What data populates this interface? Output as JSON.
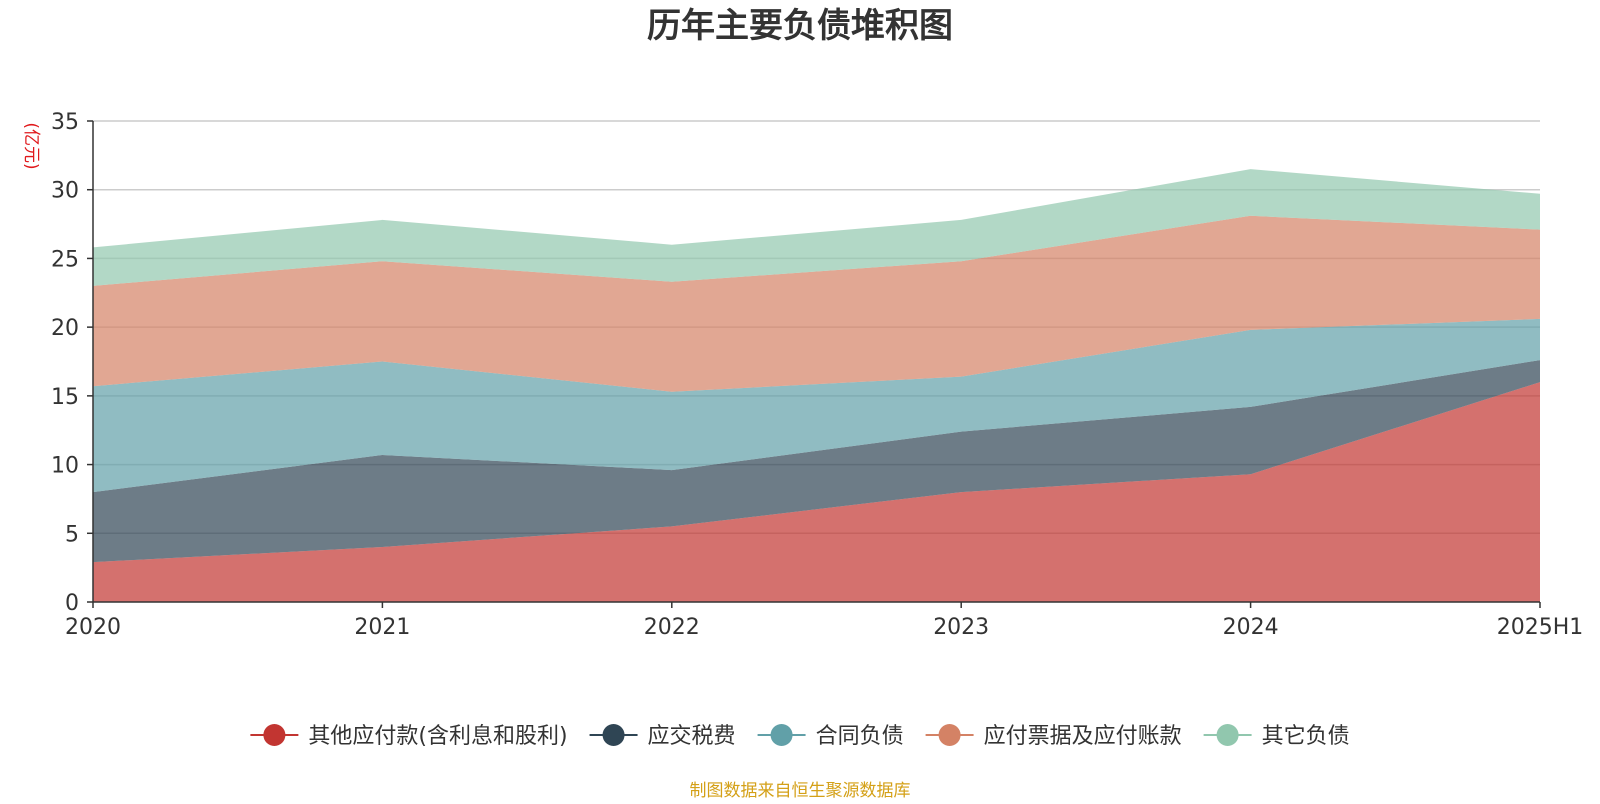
{
  "chart_data": {
    "type": "area",
    "stacked": true,
    "title": "历年主要负债堆积图",
    "ylabel": "(亿元)",
    "xlabel": "",
    "categories": [
      "2020",
      "2021",
      "2022",
      "2023",
      "2024",
      "2025H1"
    ],
    "ylim": [
      0,
      35
    ],
    "yticks": [
      0,
      5,
      10,
      15,
      20,
      25,
      30,
      35
    ],
    "grid": true,
    "legend_position": "bottom",
    "series": [
      {
        "name": "其他应付款(含利息和股利)",
        "color": "#c23531",
        "values": [
          2.9,
          4.0,
          5.5,
          8.0,
          9.3,
          16.0
        ]
      },
      {
        "name": "应交税费",
        "color": "#2f4554",
        "values": [
          5.1,
          6.7,
          4.1,
          4.4,
          4.9,
          1.6
        ]
      },
      {
        "name": "合同负债",
        "color": "#61a0a8",
        "values": [
          7.7,
          6.8,
          5.7,
          4.0,
          5.6,
          3.0
        ]
      },
      {
        "name": "应付票据及应付账款",
        "color": "#d48265",
        "values": [
          7.3,
          7.3,
          8.0,
          8.4,
          8.3,
          6.5
        ]
      },
      {
        "name": "其它负债",
        "color": "#91c7ae",
        "values": [
          2.8,
          3.0,
          2.7,
          3.0,
          3.4,
          2.6
        ]
      }
    ],
    "source_note": "制图数据来自恒生聚源数据库",
    "colors": {
      "title": "#333333",
      "ylabel": "#e0191c",
      "axis": "#333333",
      "grid": "#cccccc",
      "source_note": "#d4a017"
    }
  }
}
